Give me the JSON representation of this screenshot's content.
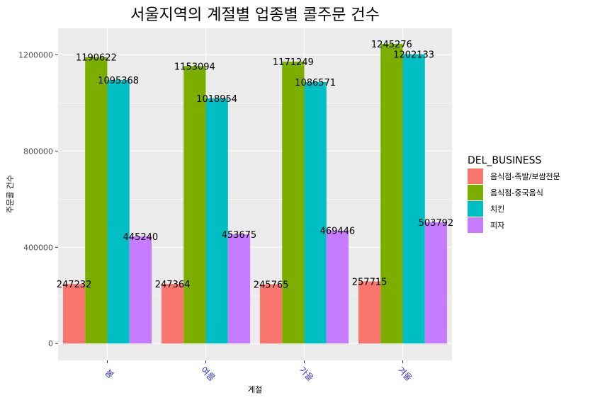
{
  "chart_data": {
    "type": "bar",
    "title": "서울지역의 계절별 업종별 콜주문 건수",
    "xlabel": "계절",
    "ylabel": "주문콜 건수",
    "categories": [
      "봄",
      "여름",
      "가을",
      "겨울"
    ],
    "series": [
      {
        "name": "음식점-족발/보쌈전문",
        "color": "#F8766D",
        "values": [
          247232,
          247364,
          245765,
          257715
        ]
      },
      {
        "name": "음식점-중국음식",
        "color": "#7CAE00",
        "values": [
          1190622,
          1153094,
          1171249,
          1245276
        ]
      },
      {
        "name": "치킨",
        "color": "#00BFC4",
        "values": [
          1095368,
          1018954,
          1086571,
          1202133
        ]
      },
      {
        "name": "피자",
        "color": "#C77CFF",
        "values": [
          445240,
          453675,
          469446,
          503792
        ]
      }
    ],
    "ylim": [
      -70000,
      1310000
    ],
    "yticks": [
      0,
      400000,
      800000,
      1200000
    ],
    "ytick_labels": [
      "0",
      "400000",
      "800000",
      "1200000"
    ],
    "grid": true,
    "legend": {
      "title": "DEL_BUSINESS",
      "position": "right"
    },
    "x_tick_label_color": "#2C2CCD",
    "panel_background": "#EBEBEB"
  }
}
